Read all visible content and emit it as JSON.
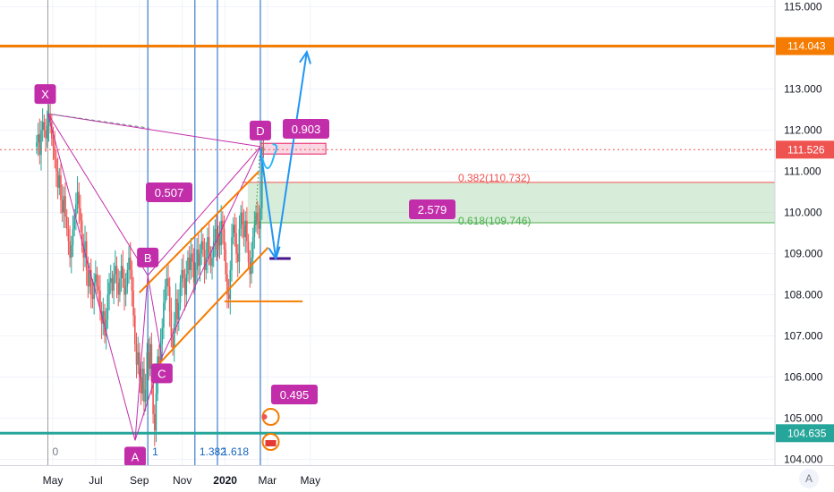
{
  "chart_data": {
    "type": "candlestick",
    "y_axis": {
      "side": "right",
      "ticks": [
        "115.000",
        "114.000",
        "113.000",
        "112.000",
        "111.000",
        "110.000",
        "109.000",
        "108.000",
        "107.000",
        "106.000",
        "105.000",
        "104.000"
      ],
      "range": [
        103.9,
        115.2
      ]
    },
    "x_axis": {
      "ticks": [
        "May",
        "Jul",
        "Sep",
        "Nov",
        "2020",
        "Mar",
        "May"
      ]
    },
    "price_labels": [
      {
        "text": "114.043",
        "value": 114.043,
        "color": "#f57c00"
      },
      {
        "text": "111.526",
        "value": 111.526,
        "color": "#ef5350"
      },
      {
        "text": "104.635",
        "value": 104.635,
        "color": "#26a69a"
      }
    ],
    "horizontal_levels": [
      {
        "value": 114.043,
        "color": "#f57c00"
      },
      {
        "value": 104.635,
        "color": "#26a69a"
      },
      {
        "value": 111.526,
        "color": "#ef5350",
        "style": "dotted"
      }
    ],
    "harmonic_points": [
      {
        "label": "X",
        "date": "2019-04-24",
        "price": 112.4
      },
      {
        "label": "A",
        "date": "2019-08-26",
        "price": 104.46
      },
      {
        "label": "B",
        "date": "2019-09-13",
        "price": 108.47
      },
      {
        "label": "C",
        "date": "2019-10-03",
        "price": 106.48
      },
      {
        "label": "D",
        "date": "2020-02-20",
        "price": 111.6
      }
    ],
    "ratio_labels": [
      "0.903",
      "0.507",
      "2.579",
      "0.495"
    ],
    "fib_time_labels": [
      "0",
      "1",
      "1.382",
      "1.618"
    ],
    "fib_levels": [
      {
        "text": "0.382(110.732)",
        "value": 110.73,
        "color": "#ef5350"
      },
      {
        "text": "0.618(109.746)",
        "value": 109.75,
        "color": "#4caf50"
      }
    ],
    "channel": {
      "upper": [
        [
          "2019-09-01",
          108.05
        ],
        [
          "2020-02-18",
          111.0
        ]
      ],
      "lower": [
        [
          "2019-09-29",
          106.32
        ],
        [
          "2020-03-02",
          109.15
        ]
      ],
      "support": [
        [
          "2019-12-31",
          107.84
        ],
        [
          "2020-04-20",
          107.84
        ]
      ]
    },
    "projection_path": [
      [
        "2020-02-20",
        111.55
      ],
      [
        "2020-03-13",
        108.88
      ],
      [
        "2020-04-26",
        113.9
      ]
    ],
    "candles": {
      "start": "2019-04-08",
      "step_days": 2.15,
      "close": [
        111.7,
        111.9,
        111.4,
        112.0,
        112.2,
        112.0,
        111.8,
        112.1,
        112.4,
        112.2,
        111.8,
        111.6,
        111.3,
        111.0,
        110.6,
        110.9,
        110.3,
        110.0,
        110.4,
        109.9,
        109.6,
        109.3,
        108.9,
        109.2,
        109.6,
        109.9,
        110.2,
        110.5,
        110.1,
        109.8,
        109.2,
        108.9,
        109.3,
        108.6,
        108.2,
        108.6,
        108.0,
        107.9,
        108.3,
        108.5,
        108.2,
        108.1,
        107.6,
        107.3,
        107.6,
        107.0,
        107.4,
        108.0,
        108.3,
        108.4,
        108.1,
        108.5,
        108.7,
        108.3,
        108.0,
        108.4,
        108.7,
        108.4,
        108.0,
        108.2,
        108.6,
        108.9,
        108.6,
        108.1,
        107.5,
        106.8,
        106.3,
        106.6,
        106.0,
        105.6,
        106.2,
        105.4,
        105.7,
        106.6,
        106.2,
        106.8,
        105.9,
        105.1,
        104.7,
        105.6,
        106.5,
        106.2,
        106.8,
        107.2,
        107.8,
        108.2,
        108.4,
        108.2,
        107.6,
        107.0,
        106.7,
        107.3,
        107.9,
        107.4,
        107.8,
        108.3,
        108.6,
        108.4,
        108.0,
        108.5,
        108.9,
        108.6,
        109.0,
        108.8,
        108.3,
        108.6,
        109.1,
        108.7,
        109.0,
        109.3,
        109.1,
        108.6,
        108.9,
        109.4,
        109.0,
        108.7,
        108.9,
        109.3,
        109.6,
        109.1,
        109.5,
        109.2,
        109.8,
        109.6,
        109.1,
        108.5,
        108.0,
        107.9,
        108.6,
        109.4,
        109.7,
        109.5,
        109.0,
        108.8,
        109.6,
        110.0,
        109.7,
        109.4,
        109.8,
        109.3,
        108.8,
        108.5,
        108.9,
        109.4,
        109.7,
        110.0,
        109.8,
        109.6,
        110.1,
        111.6,
        111.5
      ]
    }
  }
}
